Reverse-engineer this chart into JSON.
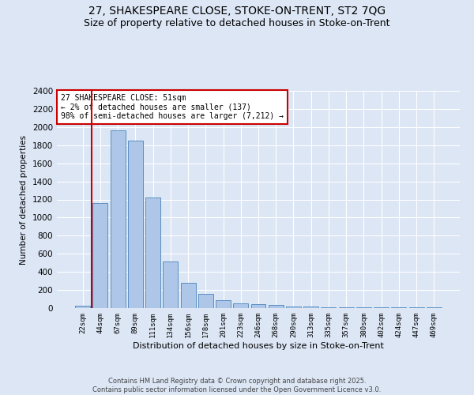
{
  "title_line1": "27, SHAKESPEARE CLOSE, STOKE-ON-TRENT, ST2 7QG",
  "title_line2": "Size of property relative to detached houses in Stoke-on-Trent",
  "xlabel": "Distribution of detached houses by size in Stoke-on-Trent",
  "ylabel": "Number of detached properties",
  "annotation_title": "27 SHAKESPEARE CLOSE: 51sqm",
  "annotation_line2": "← 2% of detached houses are smaller (137)",
  "annotation_line3": "98% of semi-detached houses are larger (7,212) →",
  "categories": [
    "22sqm",
    "44sqm",
    "67sqm",
    "89sqm",
    "111sqm",
    "134sqm",
    "156sqm",
    "178sqm",
    "201sqm",
    "223sqm",
    "246sqm",
    "268sqm",
    "290sqm",
    "313sqm",
    "335sqm",
    "357sqm",
    "380sqm",
    "402sqm",
    "424sqm",
    "447sqm",
    "469sqm"
  ],
  "values": [
    30,
    1160,
    1960,
    1850,
    1225,
    515,
    275,
    155,
    90,
    50,
    45,
    35,
    20,
    20,
    5,
    5,
    5,
    5,
    5,
    5,
    5
  ],
  "bar_color": "#aec6e8",
  "bar_edge_color": "#5a8fc2",
  "vline_color": "#cc0000",
  "annotation_box_color": "#cc0000",
  "background_color": "#dce6f5",
  "ylim": [
    0,
    2400
  ],
  "yticks": [
    0,
    200,
    400,
    600,
    800,
    1000,
    1200,
    1400,
    1600,
    1800,
    2000,
    2200,
    2400
  ],
  "footer": "Contains HM Land Registry data © Crown copyright and database right 2025.\nContains public sector information licensed under the Open Government Licence v3.0.",
  "grid_color": "#ffffff",
  "title_fontsize": 10,
  "subtitle_fontsize": 9
}
